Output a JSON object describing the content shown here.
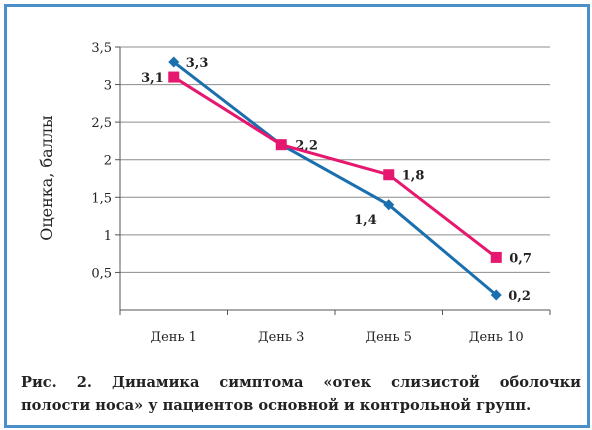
{
  "chart_data": {
    "type": "line",
    "categories": [
      "День 1",
      "День 3",
      "День 5",
      "День 10"
    ],
    "ylabel": "Оценка, баллы",
    "ylim": [
      0,
      3.5
    ],
    "yticks": [
      "0,5",
      "1",
      "1,5",
      "2",
      "2,5",
      "3",
      "3,5"
    ],
    "grid": true,
    "series": [
      {
        "color": "#1a6faf",
        "marker": "diamond",
        "values": [
          3.3,
          2.2,
          1.4,
          0.2
        ],
        "labels": [
          "3,3",
          "2,2",
          "1,4",
          "0,2"
        ]
      },
      {
        "color": "#e5176e",
        "marker": "square",
        "values": [
          3.1,
          2.2,
          1.8,
          0.7
        ],
        "labels": [
          "3,1",
          "",
          "1,8",
          "0,7"
        ]
      }
    ]
  },
  "caption": {
    "line1": "Рис. 2. Динамика симптома «отек слизистой оболочки",
    "line2": "полости носа» у пациентов основной и контрольной групп."
  }
}
